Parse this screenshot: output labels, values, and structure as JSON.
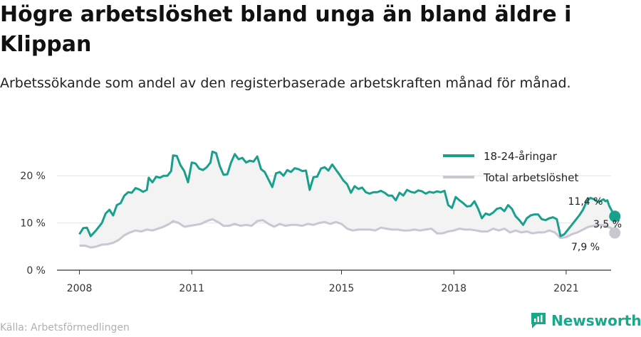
{
  "title": "Högre arbetslöshet bland unga än bland äldre i Klippan",
  "subtitle": "Arbetssökande som andel av den registerbaserade arbetskraften månad för månad.",
  "source": "Källa: Arbetsförmedlingen",
  "brand": "Newsworthy",
  "colors": {
    "youth": "#19a08c",
    "total": "#c8c8d2",
    "fill": "#f3f3f3",
    "brand": "#18a88a"
  },
  "chart_data": {
    "type": "line",
    "ylim": [
      0,
      25
    ],
    "yticks": [
      0,
      10,
      20
    ],
    "ytick_labels": [
      "0 %",
      "10 %",
      "20 %"
    ],
    "xlim": [
      2007.4,
      2022.2
    ],
    "xticks": [
      2008,
      2011,
      2015,
      2018,
      2021
    ],
    "xtick_labels": [
      "2008",
      "2011",
      "2015",
      "2018",
      "2021"
    ],
    "legend_position": "top-right",
    "grid": true,
    "series": [
      {
        "name": "18-24-åringar",
        "color": "#19a08c",
        "end_label": "11,4 %",
        "points": [
          [
            2008.0,
            7.6
          ],
          [
            2008.1,
            8.9
          ],
          [
            2008.2,
            9.0
          ],
          [
            2008.3,
            7.2
          ],
          [
            2008.45,
            8.5
          ],
          [
            2008.6,
            10.0
          ],
          [
            2008.7,
            12.0
          ],
          [
            2008.8,
            12.8
          ],
          [
            2008.9,
            11.6
          ],
          [
            2009.0,
            13.8
          ],
          [
            2009.1,
            14.2
          ],
          [
            2009.2,
            15.8
          ],
          [
            2009.3,
            16.5
          ],
          [
            2009.4,
            16.4
          ],
          [
            2009.5,
            17.4
          ],
          [
            2009.6,
            17.1
          ],
          [
            2009.7,
            16.6
          ],
          [
            2009.8,
            17.0
          ],
          [
            2009.85,
            19.6
          ],
          [
            2009.95,
            18.6
          ],
          [
            2010.05,
            19.8
          ],
          [
            2010.15,
            19.6
          ],
          [
            2010.25,
            20.0
          ],
          [
            2010.35,
            20.0
          ],
          [
            2010.45,
            21.0
          ],
          [
            2010.5,
            24.3
          ],
          [
            2010.6,
            24.2
          ],
          [
            2010.7,
            22.2
          ],
          [
            2010.8,
            21.0
          ],
          [
            2010.9,
            18.6
          ],
          [
            2011.0,
            22.8
          ],
          [
            2011.1,
            22.6
          ],
          [
            2011.2,
            21.5
          ],
          [
            2011.3,
            21.2
          ],
          [
            2011.4,
            21.8
          ],
          [
            2011.5,
            22.8
          ],
          [
            2011.55,
            25.1
          ],
          [
            2011.65,
            24.8
          ],
          [
            2011.75,
            22.0
          ],
          [
            2011.85,
            20.2
          ],
          [
            2011.95,
            20.3
          ],
          [
            2012.05,
            22.8
          ],
          [
            2012.15,
            24.6
          ],
          [
            2012.25,
            23.5
          ],
          [
            2012.35,
            23.8
          ],
          [
            2012.45,
            22.8
          ],
          [
            2012.55,
            23.2
          ],
          [
            2012.65,
            23.0
          ],
          [
            2012.75,
            24.1
          ],
          [
            2012.85,
            21.4
          ],
          [
            2012.95,
            20.8
          ],
          [
            2013.05,
            19.2
          ],
          [
            2013.15,
            17.6
          ],
          [
            2013.25,
            20.5
          ],
          [
            2013.35,
            20.8
          ],
          [
            2013.45,
            20.0
          ],
          [
            2013.55,
            21.2
          ],
          [
            2013.65,
            20.8
          ],
          [
            2013.75,
            21.6
          ],
          [
            2013.85,
            21.4
          ],
          [
            2013.95,
            21.0
          ],
          [
            2014.05,
            21.1
          ],
          [
            2014.15,
            17.0
          ],
          [
            2014.25,
            19.7
          ],
          [
            2014.35,
            19.8
          ],
          [
            2014.45,
            21.5
          ],
          [
            2014.55,
            21.8
          ],
          [
            2014.65,
            21.1
          ],
          [
            2014.75,
            22.4
          ],
          [
            2014.85,
            21.3
          ],
          [
            2014.95,
            20.2
          ],
          [
            2015.05,
            19.0
          ],
          [
            2015.15,
            18.2
          ],
          [
            2015.25,
            16.4
          ],
          [
            2015.35,
            17.8
          ],
          [
            2015.45,
            17.2
          ],
          [
            2015.55,
            17.5
          ],
          [
            2015.65,
            16.5
          ],
          [
            2015.75,
            16.2
          ],
          [
            2015.85,
            16.5
          ],
          [
            2015.95,
            16.5
          ],
          [
            2016.05,
            16.8
          ],
          [
            2016.15,
            16.4
          ],
          [
            2016.25,
            15.8
          ],
          [
            2016.35,
            15.8
          ],
          [
            2016.45,
            14.8
          ],
          [
            2016.55,
            16.4
          ],
          [
            2016.65,
            15.8
          ],
          [
            2016.75,
            17.0
          ],
          [
            2016.85,
            16.6
          ],
          [
            2016.95,
            16.4
          ],
          [
            2017.05,
            16.9
          ],
          [
            2017.15,
            16.7
          ],
          [
            2017.25,
            16.2
          ],
          [
            2017.35,
            16.6
          ],
          [
            2017.45,
            16.4
          ],
          [
            2017.55,
            16.7
          ],
          [
            2017.65,
            16.5
          ],
          [
            2017.75,
            16.8
          ],
          [
            2017.85,
            13.8
          ],
          [
            2017.95,
            13.2
          ],
          [
            2018.05,
            15.5
          ],
          [
            2018.15,
            14.8
          ],
          [
            2018.25,
            14.2
          ],
          [
            2018.35,
            13.5
          ],
          [
            2018.45,
            13.6
          ],
          [
            2018.55,
            14.6
          ],
          [
            2018.65,
            13.0
          ],
          [
            2018.75,
            11.0
          ],
          [
            2018.85,
            12.0
          ],
          [
            2018.95,
            11.7
          ],
          [
            2019.05,
            12.2
          ],
          [
            2019.15,
            13.0
          ],
          [
            2019.25,
            13.2
          ],
          [
            2019.35,
            12.5
          ],
          [
            2019.45,
            13.8
          ],
          [
            2019.55,
            13.0
          ],
          [
            2019.65,
            11.4
          ],
          [
            2019.75,
            10.6
          ],
          [
            2019.85,
            9.6
          ],
          [
            2019.95,
            11.0
          ],
          [
            2020.05,
            11.6
          ],
          [
            2020.15,
            11.8
          ],
          [
            2020.25,
            11.8
          ],
          [
            2020.35,
            10.8
          ],
          [
            2020.45,
            10.6
          ],
          [
            2020.55,
            11.0
          ],
          [
            2020.65,
            11.2
          ],
          [
            2020.75,
            10.8
          ],
          [
            2020.85,
            7.2
          ],
          [
            2020.95,
            7.6
          ],
          [
            2021.05,
            8.6
          ],
          [
            2021.15,
            9.6
          ],
          [
            2021.25,
            10.6
          ],
          [
            2021.35,
            11.6
          ],
          [
            2021.45,
            12.8
          ],
          [
            2021.55,
            14.6
          ],
          [
            2021.65,
            15.3
          ],
          [
            2021.75,
            15.0
          ],
          [
            2021.85,
            14.4
          ],
          [
            2021.95,
            14.8
          ],
          [
            2022.0,
            15.0
          ],
          [
            2022.05,
            14.6
          ],
          [
            2022.1,
            14.8
          ],
          [
            2022.15,
            13.6
          ],
          [
            2022.3,
            11.4
          ]
        ]
      },
      {
        "name": "Total arbetslöshet",
        "color": "#c8c8d2",
        "end_label": "7,9 %",
        "points": [
          [
            2008.0,
            5.2
          ],
          [
            2008.15,
            5.2
          ],
          [
            2008.3,
            4.8
          ],
          [
            2008.45,
            5.0
          ],
          [
            2008.6,
            5.4
          ],
          [
            2008.75,
            5.5
          ],
          [
            2008.9,
            5.8
          ],
          [
            2009.05,
            6.4
          ],
          [
            2009.2,
            7.4
          ],
          [
            2009.35,
            8.0
          ],
          [
            2009.5,
            8.4
          ],
          [
            2009.65,
            8.2
          ],
          [
            2009.8,
            8.6
          ],
          [
            2009.95,
            8.4
          ],
          [
            2010.1,
            8.8
          ],
          [
            2010.25,
            9.2
          ],
          [
            2010.4,
            9.8
          ],
          [
            2010.5,
            10.4
          ],
          [
            2010.65,
            10.0
          ],
          [
            2010.8,
            9.2
          ],
          [
            2010.95,
            9.4
          ],
          [
            2011.1,
            9.6
          ],
          [
            2011.25,
            9.8
          ],
          [
            2011.4,
            10.4
          ],
          [
            2011.55,
            10.8
          ],
          [
            2011.7,
            10.2
          ],
          [
            2011.85,
            9.4
          ],
          [
            2012.0,
            9.4
          ],
          [
            2012.15,
            9.8
          ],
          [
            2012.3,
            9.4
          ],
          [
            2012.45,
            9.6
          ],
          [
            2012.6,
            9.4
          ],
          [
            2012.75,
            10.4
          ],
          [
            2012.9,
            10.6
          ],
          [
            2013.05,
            9.8
          ],
          [
            2013.2,
            9.2
          ],
          [
            2013.35,
            9.8
          ],
          [
            2013.5,
            9.4
          ],
          [
            2013.65,
            9.6
          ],
          [
            2013.8,
            9.6
          ],
          [
            2013.95,
            9.4
          ],
          [
            2014.1,
            9.8
          ],
          [
            2014.25,
            9.6
          ],
          [
            2014.4,
            10.0
          ],
          [
            2014.55,
            10.2
          ],
          [
            2014.7,
            9.8
          ],
          [
            2014.85,
            10.2
          ],
          [
            2015.0,
            9.8
          ],
          [
            2015.15,
            8.8
          ],
          [
            2015.3,
            8.4
          ],
          [
            2015.45,
            8.6
          ],
          [
            2015.6,
            8.6
          ],
          [
            2015.75,
            8.6
          ],
          [
            2015.9,
            8.4
          ],
          [
            2016.05,
            9.0
          ],
          [
            2016.2,
            8.8
          ],
          [
            2016.35,
            8.6
          ],
          [
            2016.5,
            8.6
          ],
          [
            2016.65,
            8.4
          ],
          [
            2016.8,
            8.4
          ],
          [
            2016.95,
            8.6
          ],
          [
            2017.1,
            8.4
          ],
          [
            2017.25,
            8.6
          ],
          [
            2017.4,
            8.8
          ],
          [
            2017.55,
            7.8
          ],
          [
            2017.7,
            7.8
          ],
          [
            2017.85,
            8.2
          ],
          [
            2018.0,
            8.4
          ],
          [
            2018.15,
            8.8
          ],
          [
            2018.3,
            8.6
          ],
          [
            2018.45,
            8.6
          ],
          [
            2018.6,
            8.4
          ],
          [
            2018.75,
            8.2
          ],
          [
            2018.9,
            8.2
          ],
          [
            2019.05,
            8.8
          ],
          [
            2019.2,
            8.4
          ],
          [
            2019.35,
            8.8
          ],
          [
            2019.5,
            8.0
          ],
          [
            2019.65,
            8.4
          ],
          [
            2019.8,
            8.0
          ],
          [
            2019.95,
            8.2
          ],
          [
            2020.1,
            7.8
          ],
          [
            2020.25,
            8.0
          ],
          [
            2020.4,
            8.0
          ],
          [
            2020.55,
            8.4
          ],
          [
            2020.7,
            8.0
          ],
          [
            2020.85,
            6.8
          ],
          [
            2021.0,
            7.0
          ],
          [
            2021.15,
            7.6
          ],
          [
            2021.3,
            8.0
          ],
          [
            2021.45,
            8.6
          ],
          [
            2021.6,
            9.2
          ],
          [
            2021.75,
            9.4
          ],
          [
            2021.9,
            9.6
          ],
          [
            2022.05,
            9.4
          ],
          [
            2022.2,
            8.9
          ],
          [
            2022.3,
            7.9
          ]
        ]
      }
    ],
    "gap_label": "3,5 %"
  }
}
